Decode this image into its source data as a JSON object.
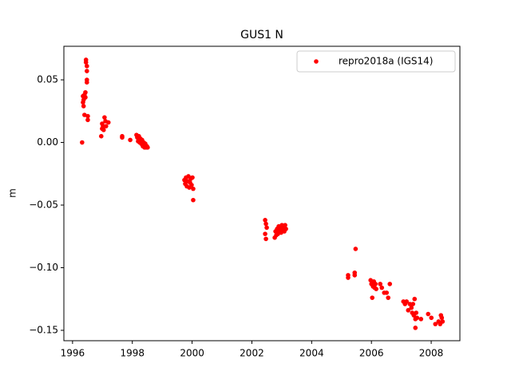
{
  "chart_data": {
    "type": "scatter",
    "title": "GUS1 N",
    "y_label": "m",
    "xlim": [
      1995.71,
      2008.96
    ],
    "xticks": [
      1996,
      1998,
      2000,
      2002,
      2004,
      2006,
      2008
    ],
    "ylim": [
      -0.1583,
      0.0768
    ],
    "yticks": [
      {
        "value": -0.15,
        "label": "−0.15"
      },
      {
        "value": -0.1,
        "label": "−0.10"
      },
      {
        "value": -0.05,
        "label": "−0.05"
      },
      {
        "value": 0,
        "label": "0.00"
      },
      0.05
    ],
    "legend": "upper right",
    "x": [
      1996.32,
      1996.35,
      1996.37,
      1996.37,
      1996.4,
      1996.43,
      1996.43,
      1996.45,
      1996.45,
      1996.48,
      1996.48,
      1996.48,
      1996.48,
      1996.51,
      1996.51,
      1996.4,
      1996.35,
      1996.96,
      1996.99,
      1997.02,
      1997.04,
      1997.07,
      1997.1,
      1997.12,
      1997.2,
      1996.99,
      1997.66,
      1997.66,
      1997.93,
      1998.139,
      1998.166,
      1998.193,
      1998.219,
      1998.246,
      1998.273,
      1998.299,
      1998.326,
      1998.353,
      1998.38,
      1998.406,
      1998.433,
      1998.46,
      1998.487,
      1998.513,
      1999.743,
      1999.77,
      1999.797,
      1999.824,
      1999.85,
      1999.877,
      1999.904,
      1999.93,
      1999.957,
      1999.984,
      2000.011,
      2000.037,
      2000.037,
      2002.444,
      2002.471,
      2002.497,
      2002.444,
      2002.471,
      2002.765,
      2002.791,
      2002.818,
      2002.845,
      2002.872,
      2002.898,
      2002.925,
      2002.952,
      2002.979,
      2003.005,
      2003.032,
      2003.059,
      2003.086,
      2003.112,
      2003.139,
      2005.22,
      2005.22,
      2005.44,
      2005.44,
      2005.47,
      2005.973,
      2006.0,
      2006.027,
      2006.053,
      2006.08,
      2006.107,
      2006.134,
      2006.16,
      2006.294,
      2006.348,
      2006.428,
      2006.508,
      2006.561,
      2006.615,
      2007.07,
      2007.123,
      2007.176,
      2007.23,
      2007.283,
      2007.337,
      2007.364,
      2007.39,
      2007.417,
      2007.444,
      2007.471,
      2007.471,
      2007.497,
      2007.524,
      2007.658,
      2007.898,
      2008.005,
      2008.139,
      2008.246,
      2008.299,
      2008.326,
      2008.353,
      2008.38
    ],
    "series": [
      {
        "name": "repro2018a (IGS14)",
        "color": "#ff0000",
        "values": [
          0.0,
          0.037,
          0.034,
          0.029,
          0.038,
          0.04,
          0.036,
          0.066,
          0.064,
          0.061,
          0.057,
          0.05,
          0.048,
          0.021,
          0.018,
          0.022,
          0.032,
          0.005,
          0.011,
          0.013,
          0.01,
          0.02,
          0.017,
          0.013,
          0.016,
          0.015,
          0.005,
          0.004,
          0.002,
          0.006,
          0.004,
          0.001,
          0.005,
          0.0,
          0.003,
          -0.001,
          0.002,
          -0.003,
          0.0,
          -0.004,
          -0.001,
          -0.004,
          -0.003,
          -0.004,
          -0.03,
          -0.033,
          -0.028,
          -0.035,
          -0.031,
          -0.027,
          -0.036,
          -0.032,
          -0.029,
          -0.034,
          -0.028,
          -0.037,
          -0.046,
          -0.062,
          -0.065,
          -0.068,
          -0.073,
          -0.077,
          -0.076,
          -0.071,
          -0.074,
          -0.069,
          -0.073,
          -0.067,
          -0.071,
          -0.068,
          -0.072,
          -0.066,
          -0.07,
          -0.067,
          -0.071,
          -0.066,
          -0.069,
          -0.106,
          -0.108,
          -0.104,
          -0.106,
          -0.085,
          -0.11,
          -0.113,
          -0.124,
          -0.115,
          -0.111,
          -0.116,
          -0.113,
          -0.117,
          -0.113,
          -0.116,
          -0.12,
          -0.12,
          -0.124,
          -0.113,
          -0.127,
          -0.129,
          -0.127,
          -0.134,
          -0.129,
          -0.132,
          -0.136,
          -0.129,
          -0.138,
          -0.125,
          -0.141,
          -0.148,
          -0.136,
          -0.14,
          -0.141,
          -0.137,
          -0.14,
          -0.145,
          -0.143,
          -0.145,
          -0.138,
          -0.14,
          -0.143
        ]
      }
    ]
  }
}
